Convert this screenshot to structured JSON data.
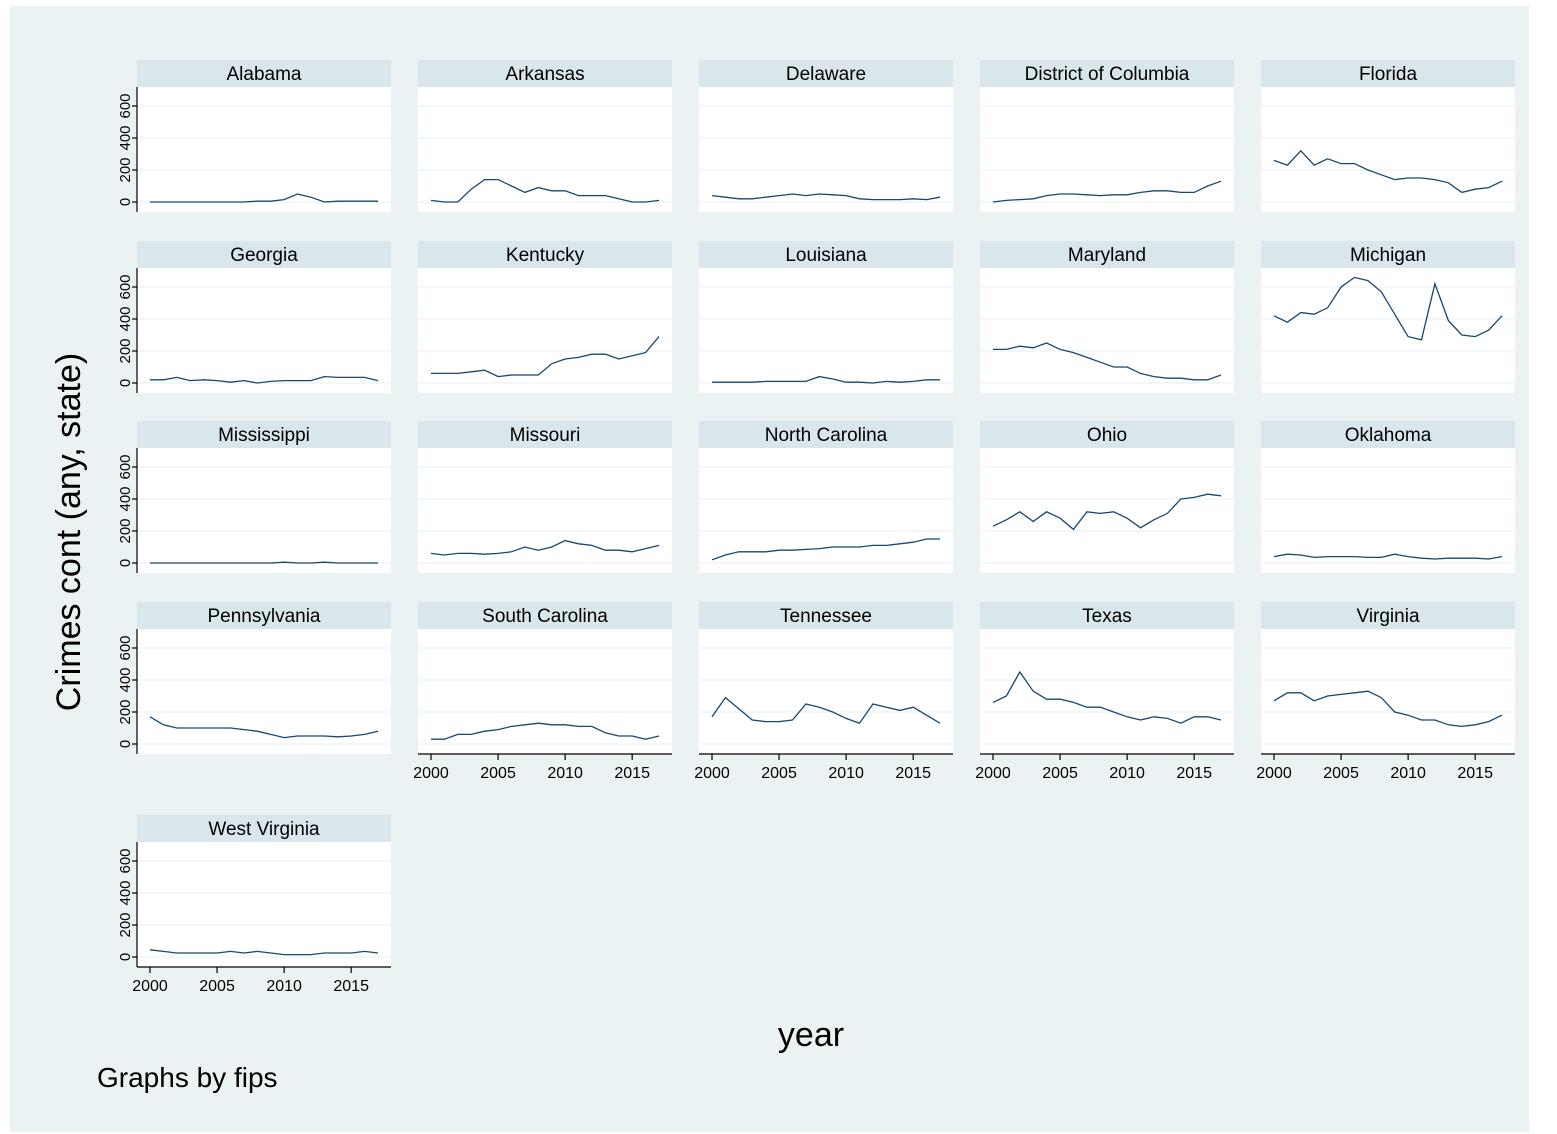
{
  "graph_note": "Graphs by fips",
  "chart_data": {
    "type": "line",
    "layout": "small-multiples",
    "xlabel": "year",
    "ylabel": "Crimes cont (any, state)",
    "xlim": [
      2000,
      2017
    ],
    "ylim": [
      0,
      700
    ],
    "x_ticks": [
      2000,
      2005,
      2010,
      2015
    ],
    "y_ticks": [
      0,
      200,
      400,
      600
    ],
    "grid": true,
    "colors": {
      "line": "#1a476f",
      "panel_header": "#d9e6eb",
      "background": "#eaf2f3",
      "plot": "#ffffff",
      "grid": "#eaf2f3"
    },
    "x": [
      2000,
      2001,
      2002,
      2003,
      2004,
      2005,
      2006,
      2007,
      2008,
      2009,
      2010,
      2011,
      2012,
      2013,
      2014,
      2015,
      2016,
      2017
    ],
    "panels": [
      {
        "name": "Alabama",
        "values": [
          0,
          0,
          0,
          0,
          0,
          0,
          0,
          0,
          5,
          5,
          15,
          50,
          30,
          0,
          5,
          5,
          5,
          5
        ]
      },
      {
        "name": "Arkansas",
        "values": [
          10,
          0,
          0,
          80,
          140,
          140,
          100,
          60,
          90,
          70,
          70,
          40,
          40,
          40,
          20,
          0,
          0,
          10
        ]
      },
      {
        "name": "Delaware",
        "values": [
          40,
          30,
          20,
          20,
          30,
          40,
          50,
          40,
          50,
          45,
          40,
          20,
          15,
          15,
          15,
          20,
          15,
          30
        ]
      },
      {
        "name": "District of Columbia",
        "values": [
          0,
          10,
          15,
          20,
          40,
          50,
          50,
          45,
          40,
          45,
          45,
          60,
          70,
          70,
          60,
          60,
          100,
          130
        ]
      },
      {
        "name": "Florida",
        "values": [
          260,
          230,
          320,
          230,
          270,
          240,
          240,
          200,
          170,
          140,
          150,
          150,
          140,
          120,
          60,
          80,
          90,
          130
        ]
      },
      {
        "name": "Georgia",
        "values": [
          20,
          20,
          35,
          15,
          20,
          15,
          5,
          15,
          0,
          10,
          15,
          15,
          15,
          40,
          35,
          35,
          35,
          15
        ]
      },
      {
        "name": "Kentucky",
        "values": [
          60,
          60,
          60,
          70,
          80,
          40,
          50,
          50,
          50,
          120,
          150,
          160,
          180,
          180,
          150,
          170,
          190,
          290
        ]
      },
      {
        "name": "Louisiana",
        "values": [
          5,
          5,
          5,
          5,
          10,
          10,
          10,
          10,
          40,
          25,
          5,
          5,
          0,
          10,
          5,
          10,
          20,
          20
        ]
      },
      {
        "name": "Maryland",
        "values": [
          210,
          210,
          230,
          220,
          250,
          210,
          190,
          160,
          130,
          100,
          100,
          60,
          40,
          30,
          30,
          20,
          20,
          50
        ]
      },
      {
        "name": "Michigan",
        "values": [
          420,
          380,
          440,
          430,
          470,
          600,
          660,
          640,
          570,
          430,
          290,
          270,
          620,
          390,
          300,
          290,
          330,
          420
        ]
      },
      {
        "name": "Mississippi",
        "values": [
          0,
          0,
          0,
          0,
          0,
          0,
          0,
          0,
          0,
          0,
          5,
          0,
          0,
          5,
          0,
          0,
          0,
          0
        ]
      },
      {
        "name": "Missouri",
        "values": [
          60,
          50,
          60,
          60,
          55,
          60,
          70,
          100,
          80,
          100,
          140,
          120,
          110,
          80,
          80,
          70,
          90,
          110
        ]
      },
      {
        "name": "North Carolina",
        "values": [
          20,
          50,
          70,
          70,
          70,
          80,
          80,
          85,
          90,
          100,
          100,
          100,
          110,
          110,
          120,
          130,
          150,
          150
        ]
      },
      {
        "name": "Ohio",
        "values": [
          230,
          270,
          320,
          260,
          320,
          280,
          210,
          320,
          310,
          320,
          280,
          220,
          270,
          310,
          400,
          410,
          430,
          420
        ]
      },
      {
        "name": "Oklahoma",
        "values": [
          40,
          55,
          50,
          35,
          40,
          40,
          40,
          35,
          35,
          55,
          40,
          30,
          25,
          30,
          30,
          30,
          25,
          40
        ]
      },
      {
        "name": "Pennsylvania",
        "values": [
          170,
          120,
          100,
          100,
          100,
          100,
          100,
          90,
          80,
          60,
          40,
          50,
          50,
          50,
          45,
          50,
          60,
          80
        ]
      },
      {
        "name": "South Carolina",
        "values": [
          30,
          30,
          60,
          60,
          80,
          90,
          110,
          120,
          130,
          120,
          120,
          110,
          110,
          70,
          50,
          50,
          30,
          50
        ]
      },
      {
        "name": "Tennessee",
        "values": [
          170,
          290,
          220,
          150,
          140,
          140,
          150,
          250,
          230,
          200,
          160,
          130,
          250,
          230,
          210,
          230,
          180,
          130
        ]
      },
      {
        "name": "Texas",
        "values": [
          260,
          300,
          450,
          330,
          280,
          280,
          260,
          230,
          230,
          200,
          170,
          150,
          170,
          160,
          130,
          170,
          170,
          150
        ]
      },
      {
        "name": "Virginia",
        "values": [
          270,
          320,
          320,
          270,
          300,
          310,
          320,
          330,
          290,
          200,
          180,
          150,
          150,
          120,
          110,
          120,
          140,
          180
        ]
      },
      {
        "name": "West Virginia",
        "values": [
          45,
          35,
          25,
          25,
          25,
          25,
          35,
          25,
          35,
          25,
          15,
          15,
          15,
          25,
          25,
          25,
          35,
          25
        ]
      }
    ]
  }
}
